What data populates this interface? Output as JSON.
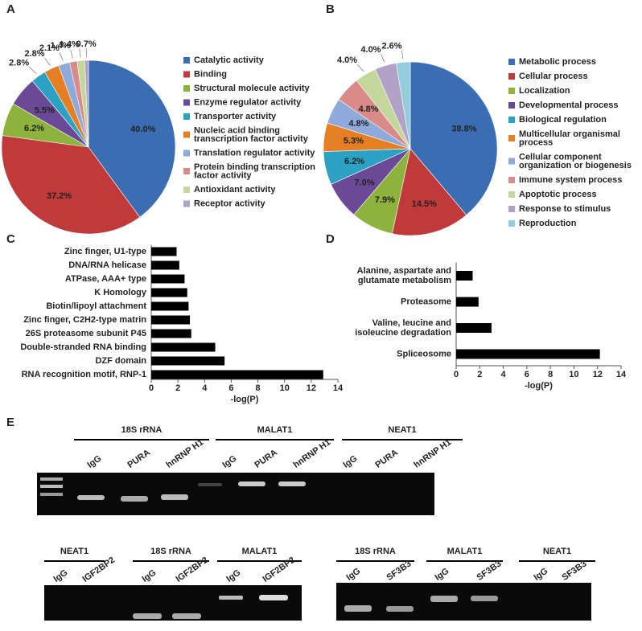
{
  "panel_labels": [
    "A",
    "B",
    "C",
    "D",
    "E"
  ],
  "chart_data": [
    {
      "type": "pie",
      "categories": [
        "Catalytic activity",
        "Binding",
        "Structural molecule activity",
        "Enzyme regulator activity",
        "Transporter activity",
        "Nucleic acid binding transcription factor activity",
        "Translation regulator activity",
        "Protein binding transcription factor activity",
        "Antioxidant activity",
        "Receptor activity"
      ],
      "values": [
        40.0,
        37.2,
        6.2,
        5.5,
        2.8,
        2.8,
        2.1,
        1.4,
        1.4,
        0.7
      ],
      "value_labels": [
        "40.0%",
        "37.2%",
        "6.2%",
        "5.5%",
        "2.8%",
        "2.8%",
        "2.1%",
        "1.4%",
        "1.4%",
        "0.7%"
      ],
      "colors": [
        "#3b6db3",
        "#c0393b",
        "#8db33c",
        "#6a4a97",
        "#2ba2c3",
        "#e57f24",
        "#8eaadb",
        "#d98a89",
        "#c3d69b",
        "#b3a2c7"
      ],
      "legend": "right"
    },
    {
      "type": "pie",
      "categories": [
        "Metabolic process",
        "Cellular process",
        "Localization",
        "Developmental process",
        "Biological regulation",
        "Multicellular organismal process",
        "Cellular component organization or biogenesis",
        "Immune system process",
        "Apoptotic process",
        "Response to stimulus",
        "Reproduction"
      ],
      "values": [
        38.8,
        14.5,
        7.9,
        7.0,
        6.2,
        5.3,
        4.8,
        4.8,
        4.0,
        4.0,
        2.6
      ],
      "value_labels": [
        "38.8%",
        "14.5%",
        "7.9%",
        "7.0%",
        "6.2%",
        "5.3%",
        "4.8%",
        "4.8%",
        "4.0%",
        "4.0%",
        "2.6%"
      ],
      "colors": [
        "#3b6db3",
        "#c0393b",
        "#8db33c",
        "#6a4a97",
        "#2ba2c3",
        "#e57f24",
        "#8eaadb",
        "#d98a89",
        "#c3d69b",
        "#b3a2c7",
        "#93cddd"
      ],
      "legend": "right"
    },
    {
      "type": "barh",
      "categories": [
        "Zinc finger, U1-type",
        "DNA/RNA helicase",
        "ATPase, AAA+ type",
        "K Homology",
        "Biotin/lipoyl attachment",
        "Zinc finger, C2H2-type matrin",
        "26S proteasome subunit P45",
        "Double-stranded RNA binding",
        "DZF domain",
        "RNA recognition motif, RNP-1"
      ],
      "values": [
        1.9,
        2.1,
        2.5,
        2.7,
        2.8,
        2.9,
        3.0,
        4.8,
        5.5,
        12.9
      ],
      "color": "#000000",
      "x_label": "-log(P)",
      "xlim": [
        0,
        14
      ],
      "xticks": [
        0,
        2,
        4,
        6,
        8,
        10,
        12,
        14
      ]
    },
    {
      "type": "barh",
      "categories": [
        "Alanine, aspartate and glutamate metabolism",
        "Proteasome",
        "Valine, leucine and isoleucine degradation",
        "Spliceosome"
      ],
      "values": [
        1.4,
        1.9,
        3.0,
        12.2
      ],
      "color": "#000000",
      "x_label": "-log(P)",
      "xlim": [
        0,
        14
      ],
      "xticks": [
        0,
        2,
        4,
        6,
        8,
        10,
        12,
        14
      ]
    }
  ],
  "gels": [
    {
      "groups": [
        {
          "name": "18S rRNA",
          "lanes": [
            "IgG",
            "PURA",
            "hnRNP H1"
          ]
        },
        {
          "name": "MALAT1",
          "lanes": [
            "IgG",
            "PURA",
            "hnRNP H1"
          ]
        },
        {
          "name": "NEAT1",
          "lanes": [
            "IgG",
            "PURA",
            "hnRNP H1"
          ]
        }
      ]
    },
    {
      "groups": [
        {
          "name": "NEAT1",
          "lanes": [
            "IgG",
            "IGF2BP2"
          ]
        },
        {
          "name": "18S rRNA",
          "lanes": [
            "IgG",
            "IGF2BP2"
          ]
        },
        {
          "name": "MALAT1",
          "lanes": [
            "IgG",
            "IGF2BP2"
          ]
        }
      ]
    },
    {
      "groups": [
        {
          "name": "18S rRNA",
          "lanes": [
            "IgG",
            "SF3B3"
          ]
        },
        {
          "name": "MALAT1",
          "lanes": [
            "IgG",
            "SF3B3"
          ]
        },
        {
          "name": "NEAT1",
          "lanes": [
            "IgG",
            "SF3B3"
          ]
        }
      ]
    }
  ]
}
